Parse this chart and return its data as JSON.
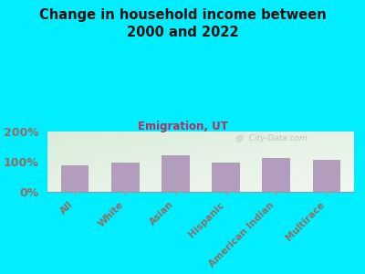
{
  "title": "Change in household income between\n2000 and 2022",
  "subtitle": "Emigration, UT",
  "categories": [
    "All",
    "White",
    "Asian",
    "Hispanic",
    "American Indian",
    "Multirace"
  ],
  "values": [
    88,
    96,
    122,
    97,
    112,
    106
  ],
  "bar_color": "#b39dbd",
  "background_outer": "#00eeff",
  "title_color": "#111111",
  "subtitle_color": "#b03060",
  "tick_label_color": "#8d6e63",
  "axis_label_color": "#8d6e63",
  "watermark": "@  City-Data.com",
  "ylim": [
    0,
    200
  ],
  "yticks": [
    0,
    100,
    200
  ],
  "ytick_labels": [
    "0%",
    "100%",
    "200%"
  ]
}
